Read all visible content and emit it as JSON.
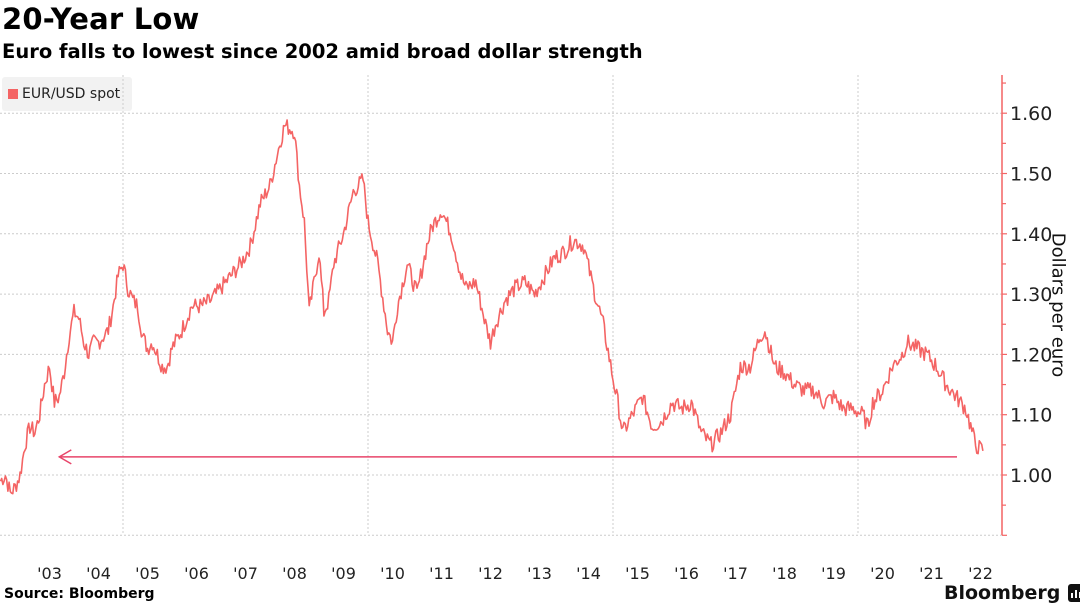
{
  "header": {
    "title": "20-Year Low",
    "subtitle": "Euro falls to lowest since 2002 amid broad dollar strength"
  },
  "footer": {
    "source": "Source: Bloomberg",
    "brand": "Bloomberg",
    "brand_icon": "bloomberg-chart-icon"
  },
  "colors": {
    "series": "#f46464",
    "arrow": "#e8456a",
    "axis": "#f46464",
    "grid": "#cccccc"
  },
  "chart_data": {
    "type": "line",
    "title": "20-Year Low",
    "subtitle": "Euro falls to lowest since 2002 amid broad dollar strength",
    "xlabel": "",
    "ylabel": "Dollars per euro",
    "legend": {
      "entries": [
        "EUR/USD spot"
      ],
      "placement": "top-left"
    },
    "x_tick_labels": [
      "'03",
      "'04",
      "'05",
      "'06",
      "'07",
      "'08",
      "'09",
      "'10",
      "'11",
      "'12",
      "'13",
      "'14",
      "'15",
      "'16",
      "'17",
      "'18",
      "'19",
      "'20",
      "'21",
      "'22"
    ],
    "y_ticks": [
      1.0,
      1.1,
      1.2,
      1.3,
      1.4,
      1.5,
      1.6
    ],
    "y_tick_labels": [
      "1.00",
      "1.10",
      "1.20",
      "1.30",
      "1.40",
      "1.50",
      "1.60"
    ],
    "ylim": [
      0.9,
      1.65
    ],
    "xlim": [
      2002.5,
      2022.55
    ],
    "grid": true,
    "y_axis_side": "right",
    "annotation": {
      "type": "arrow",
      "label": "",
      "value": 1.03,
      "from_year": 2022.5,
      "to_year": 2003.7
    },
    "series": [
      {
        "name": "EUR/USD spot",
        "x": [
          2002.5,
          2002.6,
          2002.7,
          2002.8,
          2002.9,
          2003.0,
          2003.1,
          2003.2,
          2003.3,
          2003.4,
          2003.5,
          2003.6,
          2003.7,
          2003.8,
          2003.9,
          2004.0,
          2004.1,
          2004.2,
          2004.3,
          2004.4,
          2004.5,
          2004.6,
          2004.7,
          2004.8,
          2004.9,
          2005.0,
          2005.1,
          2005.2,
          2005.3,
          2005.4,
          2005.5,
          2005.6,
          2005.7,
          2005.8,
          2005.9,
          2006.0,
          2006.2,
          2006.4,
          2006.6,
          2006.8,
          2007.0,
          2007.2,
          2007.4,
          2007.6,
          2007.8,
          2008.0,
          2008.2,
          2008.3,
          2008.5,
          2008.6,
          2008.7,
          2008.8,
          2008.9,
          2009.0,
          2009.1,
          2009.2,
          2009.3,
          2009.5,
          2009.7,
          2009.9,
          2010.0,
          2010.2,
          2010.4,
          2010.5,
          2010.6,
          2010.8,
          2011.0,
          2011.2,
          2011.3,
          2011.5,
          2011.7,
          2011.9,
          2012.0,
          2012.2,
          2012.4,
          2012.5,
          2012.6,
          2012.8,
          2013.0,
          2013.2,
          2013.4,
          2013.6,
          2013.8,
          2014.0,
          2014.2,
          2014.4,
          2014.6,
          2014.8,
          2015.0,
          2015.1,
          2015.2,
          2015.4,
          2015.6,
          2015.8,
          2016.0,
          2016.2,
          2016.4,
          2016.6,
          2016.8,
          2017.0,
          2017.2,
          2017.4,
          2017.6,
          2017.8,
          2018.0,
          2018.1,
          2018.3,
          2018.5,
          2018.7,
          2018.9,
          2019.1,
          2019.3,
          2019.5,
          2019.7,
          2019.9,
          2020.1,
          2020.2,
          2020.3,
          2020.5,
          2020.7,
          2020.9,
          2021.0,
          2021.2,
          2021.4,
          2021.6,
          2021.8,
          2022.0,
          2022.2,
          2022.3,
          2022.4,
          2022.55
        ],
        "values": [
          0.99,
          1.0,
          0.97,
          0.98,
          1.0,
          1.05,
          1.08,
          1.07,
          1.1,
          1.15,
          1.18,
          1.12,
          1.13,
          1.17,
          1.23,
          1.27,
          1.26,
          1.22,
          1.2,
          1.22,
          1.22,
          1.23,
          1.24,
          1.28,
          1.33,
          1.35,
          1.31,
          1.29,
          1.28,
          1.23,
          1.21,
          1.22,
          1.2,
          1.18,
          1.18,
          1.21,
          1.24,
          1.28,
          1.28,
          1.29,
          1.31,
          1.33,
          1.35,
          1.38,
          1.45,
          1.48,
          1.55,
          1.58,
          1.57,
          1.48,
          1.42,
          1.27,
          1.32,
          1.37,
          1.27,
          1.29,
          1.35,
          1.4,
          1.47,
          1.49,
          1.42,
          1.35,
          1.24,
          1.22,
          1.28,
          1.35,
          1.3,
          1.38,
          1.41,
          1.44,
          1.4,
          1.33,
          1.31,
          1.32,
          1.25,
          1.22,
          1.25,
          1.29,
          1.31,
          1.32,
          1.3,
          1.33,
          1.36,
          1.37,
          1.39,
          1.38,
          1.31,
          1.25,
          1.16,
          1.12,
          1.07,
          1.1,
          1.13,
          1.08,
          1.09,
          1.12,
          1.11,
          1.12,
          1.07,
          1.05,
          1.07,
          1.1,
          1.18,
          1.18,
          1.23,
          1.24,
          1.18,
          1.17,
          1.15,
          1.14,
          1.14,
          1.12,
          1.13,
          1.11,
          1.11,
          1.1,
          1.08,
          1.12,
          1.14,
          1.18,
          1.2,
          1.22,
          1.21,
          1.2,
          1.18,
          1.15,
          1.13,
          1.11,
          1.08,
          1.05,
          1.04
        ]
      }
    ]
  }
}
